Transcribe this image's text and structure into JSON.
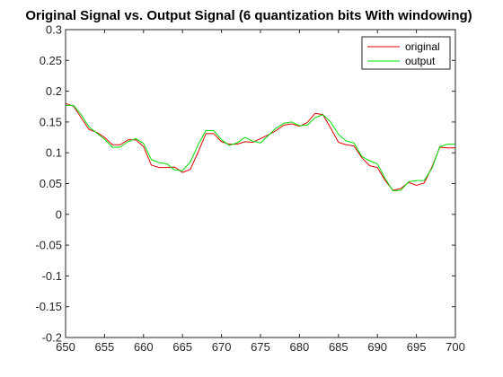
{
  "chart_data": {
    "type": "line",
    "title": "Original Signal vs. Output Signal (6 quantization bits With windowing)",
    "xlabel": "",
    "ylabel": "",
    "xlim": [
      650,
      700
    ],
    "ylim": [
      -0.2,
      0.3
    ],
    "xticks": [
      650,
      655,
      660,
      665,
      670,
      675,
      680,
      685,
      690,
      695,
      700
    ],
    "xtick_labels": [
      "650",
      "655",
      "660",
      "665",
      "670",
      "675",
      "680",
      "685",
      "690",
      "695",
      "700"
    ],
    "yticks": [
      -0.2,
      -0.15,
      -0.1,
      -0.05,
      0,
      0.05,
      0.1,
      0.15,
      0.2,
      0.25,
      0.3
    ],
    "ytick_labels": [
      "-0.2",
      "-0.15",
      "-0.1",
      "-0.05",
      "0",
      "0.05",
      "0.1",
      "0.15",
      "0.2",
      "0.25",
      "0.3"
    ],
    "grid": false,
    "legend_position": "top-right",
    "x": [
      650,
      651,
      652,
      653,
      654,
      655,
      656,
      657,
      658,
      659,
      660,
      661,
      662,
      663,
      664,
      665,
      666,
      667,
      668,
      669,
      670,
      671,
      672,
      673,
      674,
      675,
      676,
      677,
      678,
      679,
      680,
      681,
      682,
      683,
      684,
      685,
      686,
      687,
      688,
      689,
      690,
      691,
      692,
      693,
      694,
      695,
      696,
      697,
      698,
      699,
      700
    ],
    "series": [
      {
        "name": "original",
        "color": "#e00000",
        "values": [
          0.18,
          0.176,
          0.157,
          0.138,
          0.133,
          0.125,
          0.113,
          0.113,
          0.121,
          0.121,
          0.11,
          0.08,
          0.076,
          0.076,
          0.077,
          0.068,
          0.073,
          0.101,
          0.131,
          0.131,
          0.118,
          0.114,
          0.114,
          0.118,
          0.117,
          0.123,
          0.129,
          0.136,
          0.145,
          0.147,
          0.143,
          0.149,
          0.164,
          0.162,
          0.14,
          0.117,
          0.113,
          0.111,
          0.092,
          0.079,
          0.076,
          0.055,
          0.039,
          0.042,
          0.052,
          0.047,
          0.051,
          0.077,
          0.109,
          0.108,
          0.108
        ]
      },
      {
        "name": "output",
        "color": "#00e000",
        "values": [
          0.177,
          0.177,
          0.162,
          0.142,
          0.132,
          0.122,
          0.109,
          0.109,
          0.118,
          0.123,
          0.115,
          0.089,
          0.084,
          0.082,
          0.072,
          0.071,
          0.085,
          0.113,
          0.136,
          0.136,
          0.121,
          0.112,
          0.116,
          0.125,
          0.119,
          0.116,
          0.128,
          0.14,
          0.148,
          0.15,
          0.144,
          0.145,
          0.157,
          0.162,
          0.15,
          0.13,
          0.119,
          0.116,
          0.094,
          0.087,
          0.082,
          0.058,
          0.038,
          0.039,
          0.053,
          0.055,
          0.055,
          0.075,
          0.11,
          0.114,
          0.114
        ]
      }
    ]
  }
}
